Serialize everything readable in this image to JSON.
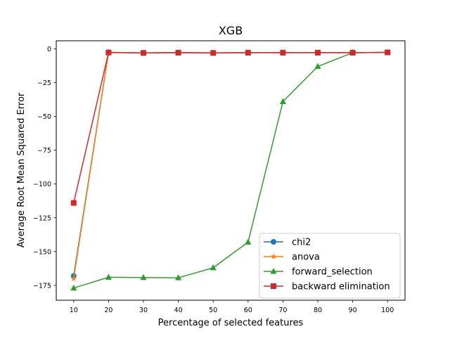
{
  "chart_data": {
    "type": "line",
    "title": "XGB",
    "xlabel": "Percentage of selected features",
    "ylabel": "Average Root Mean Squared Error",
    "x": [
      10,
      20,
      30,
      40,
      50,
      60,
      70,
      80,
      90,
      100
    ],
    "xlim": [
      5,
      105
    ],
    "ylim": [
      -186,
      6
    ],
    "xticks": [
      10,
      20,
      30,
      40,
      50,
      60,
      70,
      80,
      90,
      100
    ],
    "yticks": [
      0,
      -25,
      -50,
      -75,
      -100,
      -125,
      -150,
      -175
    ],
    "grid": false,
    "legend_position": "lower-right",
    "series": [
      {
        "name": "chi2",
        "color": "#1f77b4",
        "marker": "circle",
        "values": [
          -168,
          -2.5,
          -3,
          -2.8,
          -3,
          -2.8,
          -2.8,
          -2.8,
          -2.8,
          -2.6
        ]
      },
      {
        "name": "anova",
        "color": "#ff7f0e",
        "marker": "star",
        "values": [
          -170,
          -2.6,
          -3,
          -2.8,
          -3,
          -2.8,
          -2.8,
          -2.8,
          -2.8,
          -2.6
        ]
      },
      {
        "name": "forward_selection",
        "color": "#2ca02c",
        "marker": "triangle",
        "values": [
          -177,
          -169,
          -169.2,
          -169.4,
          -162,
          -143,
          -39,
          -13,
          -2.8,
          -2.6
        ]
      },
      {
        "name": "backward elimination",
        "color": "#d62728",
        "marker": "square",
        "values": [
          -114,
          -2.7,
          -3,
          -2.8,
          -3,
          -2.8,
          -2.8,
          -2.8,
          -2.8,
          -2.6
        ]
      }
    ]
  }
}
